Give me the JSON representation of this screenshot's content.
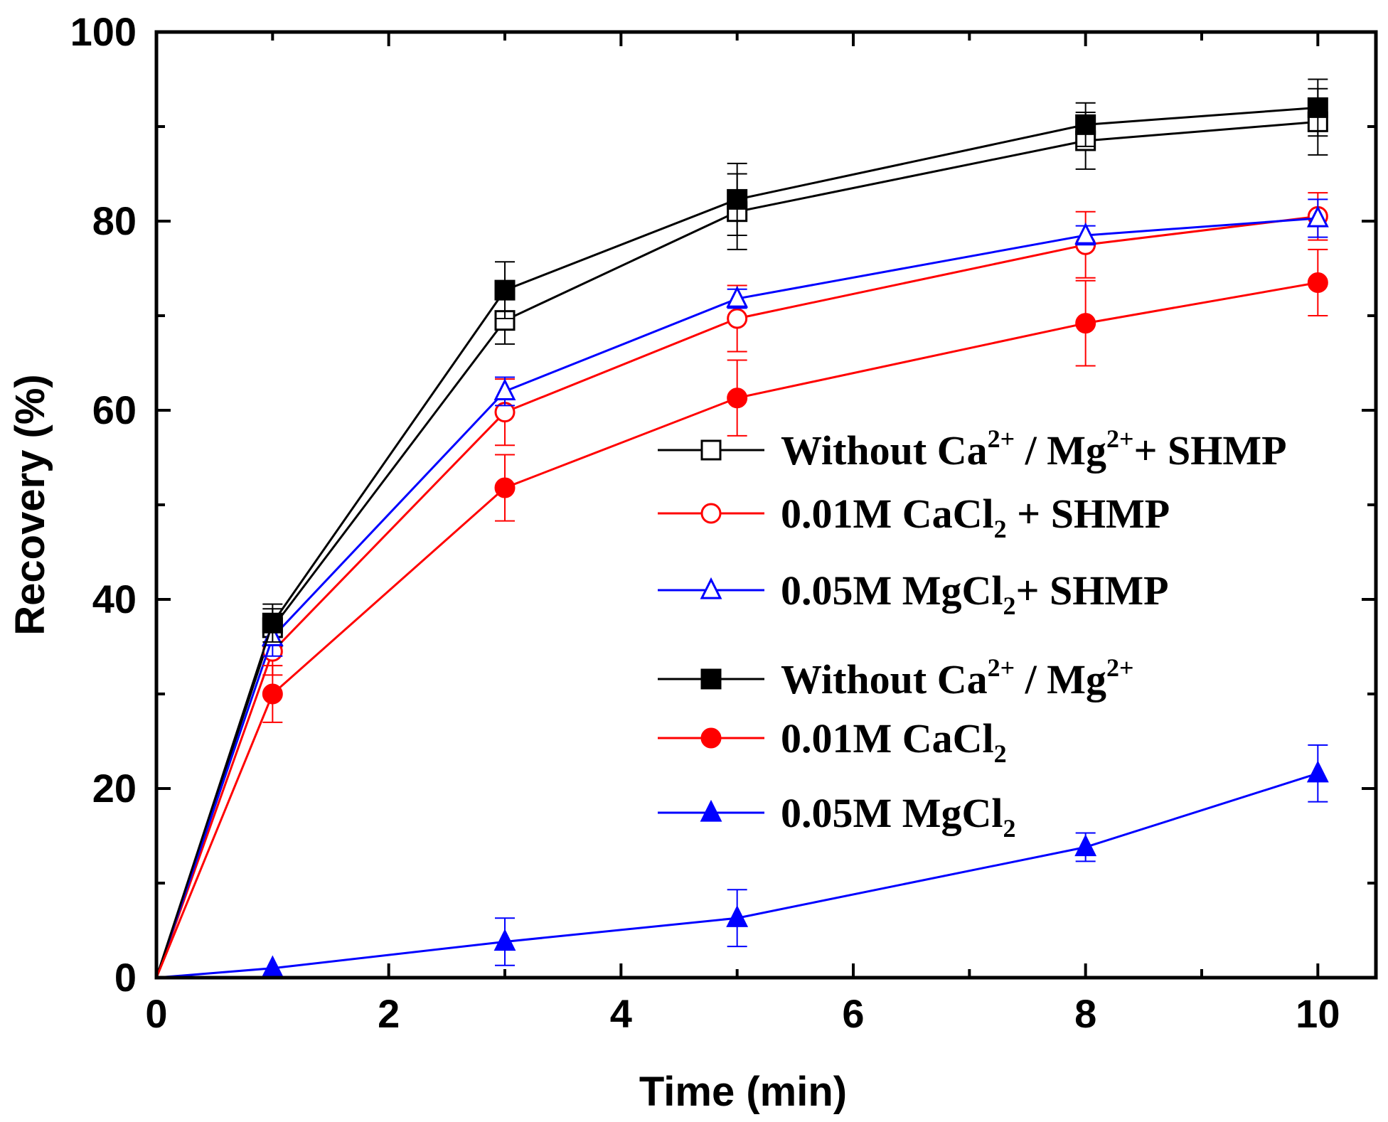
{
  "chart_data": {
    "type": "line",
    "title": "",
    "xlabel": "Time (min)",
    "ylabel": "Recovery (%)",
    "xlim": [
      0,
      10.5
    ],
    "ylim": [
      0,
      100
    ],
    "xticks": [
      0,
      2,
      4,
      6,
      8,
      10
    ],
    "yticks": [
      0,
      20,
      40,
      60,
      80,
      100
    ],
    "grid": false,
    "legend_position": "center-right",
    "x": [
      0,
      1,
      3,
      5,
      8,
      10
    ],
    "series": [
      {
        "legend": {
          "prefix": "Without Ca",
          "sup1": "2+",
          "mid": " / Mg",
          "sup2": "2+",
          "suffix": "+ SHMP"
        },
        "color": "#000000",
        "marker": "square",
        "filled": false,
        "values": [
          0,
          37,
          69.5,
          81,
          88.5,
          90.5
        ],
        "errors": [
          0,
          2,
          2.5,
          4,
          3,
          3.5
        ]
      },
      {
        "legend": {
          "prefix": "0.01M CaCl",
          "sub": "2",
          "suffix": " + SHMP"
        },
        "color": "#ff0000",
        "marker": "circle",
        "filled": false,
        "values": [
          0,
          34.5,
          59.8,
          69.7,
          77.5,
          80.5
        ],
        "errors": [
          0,
          2.5,
          3.5,
          3.5,
          3.5,
          2.5
        ]
      },
      {
        "legend": {
          "prefix": "0.05M MgCl",
          "sub": "2",
          "suffix": "+ SHMP"
        },
        "color": "#0000ff",
        "marker": "triangle",
        "filled": false,
        "values": [
          0,
          36,
          62,
          71.8,
          78.5,
          80.3
        ],
        "errors": [
          0,
          2,
          1.5,
          1,
          1,
          2
        ]
      },
      {
        "legend": {
          "prefix": "Without Ca",
          "sup1": "2+",
          "mid": " / Mg",
          "sup2": "2+",
          "suffix": ""
        },
        "color": "#000000",
        "marker": "square",
        "filled": true,
        "values": [
          0,
          37.5,
          72.7,
          82.3,
          90.2,
          92
        ],
        "errors": [
          0,
          2,
          3,
          3.8,
          2.3,
          3
        ]
      },
      {
        "legend": {
          "prefix": "0.01M CaCl",
          "sub": "2",
          "suffix": ""
        },
        "color": "#ff0000",
        "marker": "circle",
        "filled": true,
        "values": [
          0,
          30,
          51.8,
          61.3,
          69.2,
          73.5
        ],
        "errors": [
          0,
          3,
          3.5,
          4,
          4.5,
          3.5
        ]
      },
      {
        "legend": {
          "prefix": "0.05M MgCl",
          "sub": "2",
          "suffix": ""
        },
        "color": "#0000ff",
        "marker": "triangle",
        "filled": true,
        "values": [
          0,
          1,
          3.8,
          6.3,
          13.8,
          21.6
        ],
        "errors": [
          0,
          0,
          2.5,
          3,
          1.5,
          3
        ]
      }
    ]
  }
}
